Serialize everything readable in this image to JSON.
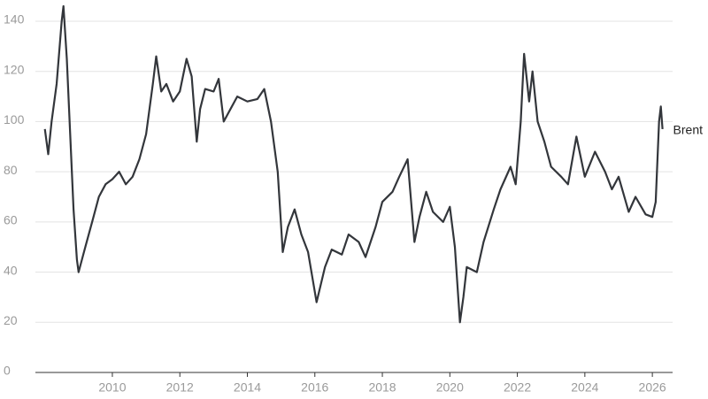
{
  "chart_data": {
    "type": "line",
    "x": [
      2008.0,
      2008.1,
      2008.2,
      2008.35,
      2008.5,
      2008.55,
      2008.65,
      2008.75,
      2008.85,
      2008.95,
      2009.0,
      2009.1,
      2009.2,
      2009.4,
      2009.6,
      2009.8,
      2010.0,
      2010.2,
      2010.4,
      2010.6,
      2010.8,
      2011.0,
      2011.2,
      2011.3,
      2011.45,
      2011.6,
      2011.8,
      2012.0,
      2012.2,
      2012.35,
      2012.5,
      2012.6,
      2012.75,
      2013.0,
      2013.15,
      2013.3,
      2013.5,
      2013.7,
      2014.0,
      2014.3,
      2014.5,
      2014.7,
      2014.9,
      2015.05,
      2015.2,
      2015.4,
      2015.6,
      2015.8,
      2016.0,
      2016.05,
      2016.3,
      2016.5,
      2016.8,
      2017.0,
      2017.3,
      2017.5,
      2017.8,
      2018.0,
      2018.3,
      2018.5,
      2018.75,
      2018.95,
      2019.1,
      2019.3,
      2019.5,
      2019.8,
      2020.0,
      2020.15,
      2020.3,
      2020.4,
      2020.5,
      2020.8,
      2021.0,
      2021.3,
      2021.5,
      2021.8,
      2021.95,
      2022.1,
      2022.2,
      2022.35,
      2022.45,
      2022.6,
      2022.8,
      2023.0,
      2023.3,
      2023.5,
      2023.75,
      2024.0,
      2024.3,
      2024.6,
      2024.8,
      2025.0,
      2025.3,
      2025.5,
      2025.8,
      2026.0,
      2026.1,
      2026.2,
      2026.25,
      2026.3
    ],
    "series": [
      {
        "name": "Brent",
        "color": "#33363b",
        "values": [
          97,
          87,
          100,
          115,
          140,
          146,
          125,
          95,
          65,
          45,
          40,
          45,
          50,
          60,
          70,
          75,
          77,
          80,
          75,
          78,
          85,
          95,
          115,
          126,
          112,
          115,
          108,
          112,
          125,
          118,
          92,
          105,
          113,
          112,
          117,
          100,
          105,
          110,
          108,
          109,
          113,
          100,
          80,
          48,
          58,
          65,
          55,
          48,
          32,
          28,
          42,
          49,
          47,
          55,
          52,
          46,
          58,
          68,
          72,
          78,
          85,
          52,
          62,
          72,
          64,
          60,
          66,
          50,
          20,
          30,
          42,
          40,
          52,
          65,
          73,
          82,
          75,
          100,
          127,
          108,
          120,
          100,
          92,
          82,
          78,
          75,
          94,
          78,
          88,
          80,
          73,
          78,
          64,
          70,
          63,
          62,
          68,
          100,
          106,
          97
        ]
      }
    ],
    "xlim": [
      2007.72,
      2026.6
    ],
    "xticks": [
      2010,
      2012,
      2014,
      2016,
      2018,
      2020,
      2022,
      2024,
      2026
    ],
    "ylim": [
      0,
      140
    ],
    "yticks": [
      0,
      20,
      40,
      60,
      80,
      100,
      120,
      140
    ],
    "grid": true
  }
}
